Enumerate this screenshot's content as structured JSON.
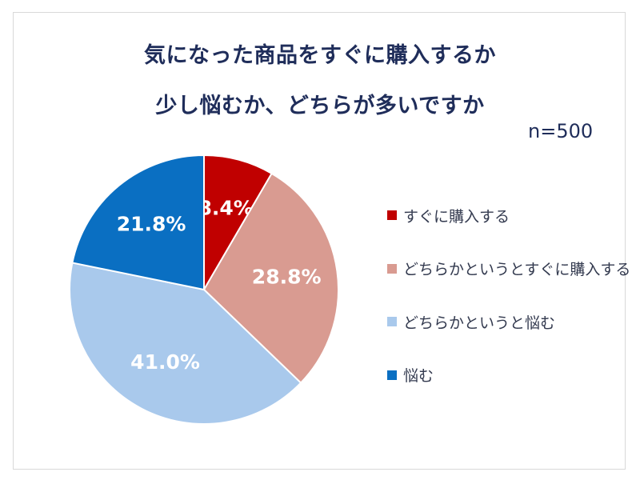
{
  "chart_data": {
    "type": "pie",
    "title": [
      "気になった商品をすぐに購入するか",
      "少し悩むか、どちらが多いですか"
    ],
    "note": "n=500",
    "categories": [
      "すぐに購入する",
      "どちらかというとすぐに購入する",
      "どちらかというと悩む",
      "悩む"
    ],
    "values": [
      8.4,
      28.8,
      41.0,
      21.8
    ],
    "labels": [
      "8.4%",
      "28.8%",
      "41.0%",
      "21.8%"
    ],
    "colors": [
      "#c00000",
      "#d99b91",
      "#a9c9ec",
      "#0a6fc2"
    ],
    "legend_position": "right"
  }
}
